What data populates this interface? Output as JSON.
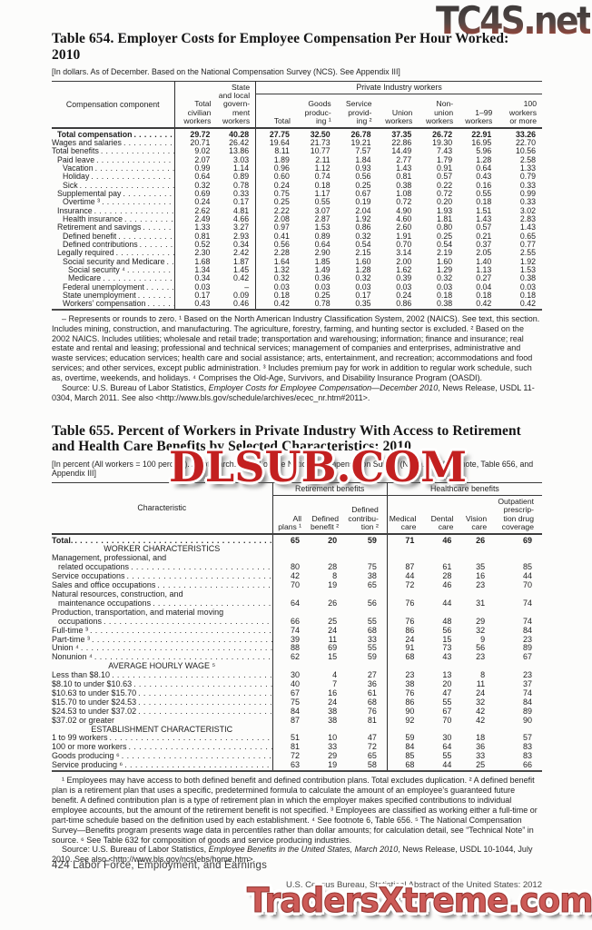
{
  "watermarks": {
    "top_right": "TC4S.net",
    "middle": "DLSUB.COM",
    "bottom": "TradersXtreme.com"
  },
  "t654": {
    "title_lines": [
      "Table 654. Employer Costs for Employee Compensation Per Hour Worked:",
      "2010"
    ],
    "headnote": "[In dollars. As of December. Based on the National Compensation Survey (NCS). See Appendix III]",
    "stub_header": "Compensation component",
    "spanner": "Private Industry workers",
    "col_headers": [
      "Total\ncivilian\nworkers",
      "State\nand local\ngovern-\nment\nworkers",
      "Total",
      "Goods\nproduc-\ning ¹",
      "Service\nprovid-\ning ²",
      "Union\nworkers",
      "Non-\nunion\nworkers",
      "1–99\nworkers",
      "100\nworkers\nor more"
    ],
    "rows": [
      {
        "label": "Total compensation",
        "bold": true,
        "indent": 1,
        "values": [
          "29.72",
          "40.28",
          "27.75",
          "32.50",
          "26.78",
          "37.35",
          "26.72",
          "22.91",
          "33.26"
        ]
      },
      {
        "label": "Wages and salaries",
        "indent": 0,
        "values": [
          "20.71",
          "26.42",
          "19.64",
          "21.73",
          "19.21",
          "22.86",
          "19.30",
          "16.95",
          "22.70"
        ]
      },
      {
        "label": "Total benefits",
        "indent": 0,
        "values": [
          "9.02",
          "13.86",
          "8.11",
          "10.77",
          "7.57",
          "14.49",
          "7.43",
          "5.96",
          "10.56"
        ]
      },
      {
        "label": "Paid leave",
        "indent": 1,
        "values": [
          "2.07",
          "3.03",
          "1.89",
          "2.11",
          "1.84",
          "2.77",
          "1.79",
          "1.28",
          "2.58"
        ]
      },
      {
        "label": "Vacation",
        "indent": 2,
        "values": [
          "0.99",
          "1.14",
          "0.96",
          "1.12",
          "0.93",
          "1.43",
          "0.91",
          "0.64",
          "1.33"
        ]
      },
      {
        "label": "Holiday",
        "indent": 2,
        "values": [
          "0.64",
          "0.89",
          "0.60",
          "0.74",
          "0.56",
          "0.81",
          "0.57",
          "0.43",
          "0.79"
        ]
      },
      {
        "label": "Sick",
        "indent": 2,
        "values": [
          "0.32",
          "0.78",
          "0.24",
          "0.18",
          "0.25",
          "0.38",
          "0.22",
          "0.16",
          "0.33"
        ]
      },
      {
        "label": "Supplemental pay",
        "indent": 1,
        "values": [
          "0.69",
          "0.33",
          "0.75",
          "1.17",
          "0.67",
          "1.08",
          "0.72",
          "0.55",
          "0.99"
        ]
      },
      {
        "label": "Overtime ³",
        "indent": 2,
        "values": [
          "0.24",
          "0.17",
          "0.25",
          "0.55",
          "0.19",
          "0.72",
          "0.20",
          "0.18",
          "0.33"
        ]
      },
      {
        "label": "Insurance",
        "indent": 1,
        "values": [
          "2.62",
          "4.81",
          "2.22",
          "3.07",
          "2.04",
          "4.90",
          "1.93",
          "1.51",
          "3.02"
        ]
      },
      {
        "label": "Health insurance",
        "indent": 2,
        "values": [
          "2.49",
          "4.66",
          "2.08",
          "2.87",
          "1.92",
          "4.60",
          "1.81",
          "1.43",
          "2.83"
        ]
      },
      {
        "label": "Retirement and savings",
        "indent": 1,
        "values": [
          "1.33",
          "3.27",
          "0.97",
          "1.53",
          "0.86",
          "2.60",
          "0.80",
          "0.57",
          "1.43"
        ]
      },
      {
        "label": "Defined benefit",
        "indent": 2,
        "values": [
          "0.81",
          "2.93",
          "0.41",
          "0.89",
          "0.32",
          "1.91",
          "0.25",
          "0.21",
          "0.65"
        ]
      },
      {
        "label": "Defined contributions",
        "indent": 2,
        "values": [
          "0.52",
          "0.34",
          "0.56",
          "0.64",
          "0.54",
          "0.70",
          "0.54",
          "0.37",
          "0.77"
        ]
      },
      {
        "label": "Legally required",
        "indent": 1,
        "values": [
          "2.30",
          "2.42",
          "2.28",
          "2.90",
          "2.15",
          "3.14",
          "2.19",
          "2.05",
          "2.55"
        ]
      },
      {
        "label": "Social security and Medicare",
        "indent": 2,
        "values": [
          "1.68",
          "1.87",
          "1.64",
          "1.85",
          "1.60",
          "2.00",
          "1.60",
          "1.40",
          "1.92"
        ]
      },
      {
        "label": "Social security ⁴",
        "indent": 3,
        "values": [
          "1.34",
          "1.45",
          "1.32",
          "1.49",
          "1.28",
          "1.62",
          "1.29",
          "1.13",
          "1.53"
        ]
      },
      {
        "label": "Medicare",
        "indent": 3,
        "values": [
          "0.34",
          "0.42",
          "0.32",
          "0.36",
          "0.32",
          "0.39",
          "0.32",
          "0.27",
          "0.38"
        ]
      },
      {
        "label": "Federal unemployment",
        "indent": 2,
        "values": [
          "0.03",
          "–",
          "0.03",
          "0.03",
          "0.03",
          "0.03",
          "0.03",
          "0.04",
          "0.03"
        ]
      },
      {
        "label": "State unemployment",
        "indent": 2,
        "values": [
          "0.17",
          "0.09",
          "0.18",
          "0.25",
          "0.17",
          "0.24",
          "0.18",
          "0.18",
          "0.18"
        ]
      },
      {
        "label": "Workers’ compensation",
        "indent": 2,
        "values": [
          "0.43",
          "0.46",
          "0.42",
          "0.78",
          "0.35",
          "0.86",
          "0.38",
          "0.42",
          "0.42"
        ]
      }
    ],
    "footnote": "– Represents or rounds to zero. ¹ Based on the North American Industry Classification System, 2002 (NAICS). See text, this section. Includes mining, construction, and manufacturing. The agriculture, forestry, farming, and hunting sector is excluded. ² Based on the 2002 NAICS. Includes utilities; wholesale and retail trade; transportation and warehousing; information; finance and insurance; real estate and rental and leasing; professional and technical services; management of companies and enterprises, administrative and waste services; education services; health care and social assistance;  arts, entertainment, and recreation; accommodations and food services; and other services, except public administration. ³ Includes premium pay for work in addition to regular work schedule, such as, overtime, weekends, and holidays. ⁴ Comprises the Old-Age, Survivors, and Disability Insurance Program (OASDI).",
    "source_pre": "Source: U.S. Bureau of Labor Statistics, ",
    "source_italic": "Employer Costs for Employee Compensation—December 2010",
    "source_post": ", News Release, USDL 11-0304, March 2011. See also <http://www.bls.gov/schedule/archives/ecec_nr.htm#2011>."
  },
  "t655": {
    "title_lines": [
      "Table 655. Percent of Workers in Private Industry With Access to Retirement",
      "and Health Care Benefits by Selected Characteristics: 2010"
    ],
    "headnote": "[In percent (All workers = 100 percent). As of March. Based on the National Compensation Survey (NCS). See headnote, Table 656, and Appendix III]",
    "stub_header": "Characteristic",
    "spanner_left": "Retirement benefits",
    "spanner_right": "Healthcare benefits",
    "col_headers": [
      "All\nplans ¹",
      "Defined\nbenefit ²",
      "Defined\ncontribu-\ntion ²",
      "Medical\ncare",
      "Dental\ncare",
      "Vision\ncare",
      "Outpatient\nprescrip-\ntion drug\ncoverage"
    ],
    "rows": [
      {
        "label": "Total.",
        "bold": true,
        "values": [
          "65",
          "20",
          "59",
          "71",
          "46",
          "26",
          "69"
        ]
      },
      {
        "section": "WORKER CHARACTERISTICS"
      },
      {
        "label": "Management, professional, and",
        "label2": "related occupations",
        "values": [
          "80",
          "28",
          "75",
          "87",
          "61",
          "35",
          "85"
        ]
      },
      {
        "label": "Service occupations",
        "values": [
          "42",
          "8",
          "38",
          "44",
          "28",
          "16",
          "44"
        ]
      },
      {
        "label": "Sales and office occupations",
        "values": [
          "70",
          "19",
          "65",
          "72",
          "46",
          "23",
          "70"
        ]
      },
      {
        "label": "Natural resources, construction, and",
        "label2": "maintenance occupations",
        "values": [
          "64",
          "26",
          "56",
          "76",
          "44",
          "31",
          "74"
        ]
      },
      {
        "label": "Production, transportation, and material moving",
        "label2": "occupations",
        "values": [
          "66",
          "25",
          "55",
          "76",
          "48",
          "29",
          "74"
        ]
      },
      {
        "label": "Full-time ³",
        "values": [
          "74",
          "24",
          "68",
          "86",
          "56",
          "32",
          "84"
        ]
      },
      {
        "label": "Part-time ³",
        "values": [
          "39",
          "11",
          "33",
          "24",
          "15",
          "9",
          "23"
        ]
      },
      {
        "label": "Union ⁴",
        "values": [
          "88",
          "69",
          "55",
          "91",
          "73",
          "56",
          "89"
        ]
      },
      {
        "label": "Nonunion ⁴",
        "values": [
          "62",
          "15",
          "59",
          "68",
          "43",
          "23",
          "67"
        ]
      },
      {
        "section": "AVERAGE HOURLY WAGE ⁵"
      },
      {
        "label": "Less than $8.10",
        "values": [
          "30",
          "4",
          "27",
          "23",
          "13",
          "8",
          "23"
        ]
      },
      {
        "label": "$8.10 to under $10.63",
        "values": [
          "40",
          "7",
          "36",
          "38",
          "20",
          "11",
          "37"
        ]
      },
      {
        "label": "$10.63 to under $15.70",
        "values": [
          "67",
          "16",
          "61",
          "76",
          "47",
          "24",
          "74"
        ]
      },
      {
        "label": "$15.70 to under $24.53",
        "values": [
          "75",
          "24",
          "68",
          "86",
          "55",
          "32",
          "84"
        ]
      },
      {
        "label": "$24.53 to under $37.02",
        "values": [
          "84",
          "38",
          "76",
          "90",
          "67",
          "42",
          "89"
        ]
      },
      {
        "label": "$37.02 or greater",
        "leader": false,
        "values": [
          "87",
          "38",
          "81",
          "92",
          "70",
          "42",
          "90"
        ]
      },
      {
        "section": "ESTABLISHMENT CHARACTERISTIC"
      },
      {
        "label": "1 to 99 workers",
        "values": [
          "51",
          "10",
          "47",
          "59",
          "30",
          "18",
          "57"
        ]
      },
      {
        "label": "100 or more workers",
        "values": [
          "81",
          "33",
          "72",
          "84",
          "64",
          "36",
          "83"
        ]
      },
      {
        "label": "Goods producing ⁶",
        "values": [
          "72",
          "29",
          "65",
          "85",
          "55",
          "33",
          "83"
        ]
      },
      {
        "label": "Service producing ⁶",
        "values": [
          "63",
          "19",
          "58",
          "68",
          "44",
          "25",
          "66"
        ]
      }
    ],
    "footnote": "¹ Employees may have access to both defined benefit and defined contribution plans. Total excludes duplication. ² A defined benefit plan is a retirement plan that uses a specific, predetermined formula to calculate the amount of an employee’s guaranteed future benefit. A defined contribution plan is a type of retirement plan in which the employer makes specified contributions to individual employee accounts, but the amount of the retirement benefit is not specified. ³ Employees are classified as working either a full-time or part-time schedule based on the definition used by each establishment. ⁴ See footnote 6, Table 656. ⁵ The National Compensation Survey—Benefits program presents wage data in percentiles rather than dollar amounts; for calculation detail, see “Technical Note” in source. ⁶ See Table 632 for composition of goods and service producing industries.",
    "source_pre": "Source: U.S. Bureau of Labor Statistics, ",
    "source_italic": "Employee Benefits in the United States, March 2010",
    "source_post": ", News Release, USDL 10-1044, July 2010. See also <http://www.bls.gov/ncs/ebs/home.htm>."
  },
  "footer": {
    "page_label": "424  Labor Force, Employment, and Earnings",
    "source_line": "U.S. Census Bureau, Statistical Abstract of the United States: 2012"
  }
}
